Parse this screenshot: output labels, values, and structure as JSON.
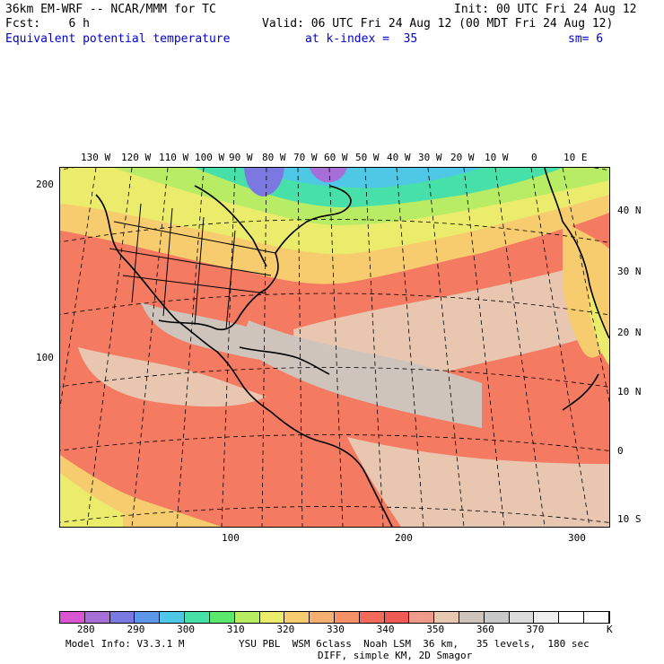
{
  "header": {
    "line1_left": "36km EM-WRF -- NCAR/MMM for TC",
    "line1_right": "Init: 00 UTC Fri 24 Aug 12",
    "line2_left": "Fcst:    6 h",
    "line2_right": "Valid: 06 UTC Fri 24 Aug 12 (00 MDT Fri 24 Aug 12)",
    "field_name": "Equivalent potential temperature",
    "level": "at k-index =  35",
    "smoothing": "sm= 6"
  },
  "top_lon_labels": [
    "130 W",
    "120 W",
    "110 W",
    "100 W",
    "90 W",
    "80 W",
    "70 W",
    "60 W",
    "50 W",
    "40 W",
    "30 W",
    "20 W",
    "10 W",
    "0",
    "10 E"
  ],
  "right_lat_labels": [
    "40 N",
    "30 N",
    "20 N",
    "10 N",
    "0",
    "10 S"
  ],
  "left_axis_labels": [
    "200",
    "100"
  ],
  "bottom_axis_labels": [
    "100",
    "200",
    "300"
  ],
  "colorbar": {
    "colors": [
      "#d955d4",
      "#a86ed8",
      "#7b78e2",
      "#5c96e6",
      "#4fc8e6",
      "#46e0a8",
      "#5ae86a",
      "#b8ec64",
      "#ecec6c",
      "#f6cc6e",
      "#f8b070",
      "#f89066",
      "#f46a5a",
      "#f05a54",
      "#f09a8a",
      "#e8c6b0",
      "#cec4bc",
      "#c8c8c8",
      "#dcdcdc",
      "#f0f0f0",
      "#ffffff",
      "#ffffff"
    ],
    "labels": [
      "280",
      "290",
      "300",
      "310",
      "320",
      "330",
      "340",
      "350",
      "360",
      "370"
    ],
    "unit": "K"
  },
  "footer": {
    "line1_left": "Model Info: V3.3.1 M",
    "line1_right": "YSU PBL  WSM 6class  Noah LSM  36 km,   35 levels,  180 sec",
    "line2": "DIFF, simple KM, 2D Smagor"
  }
}
